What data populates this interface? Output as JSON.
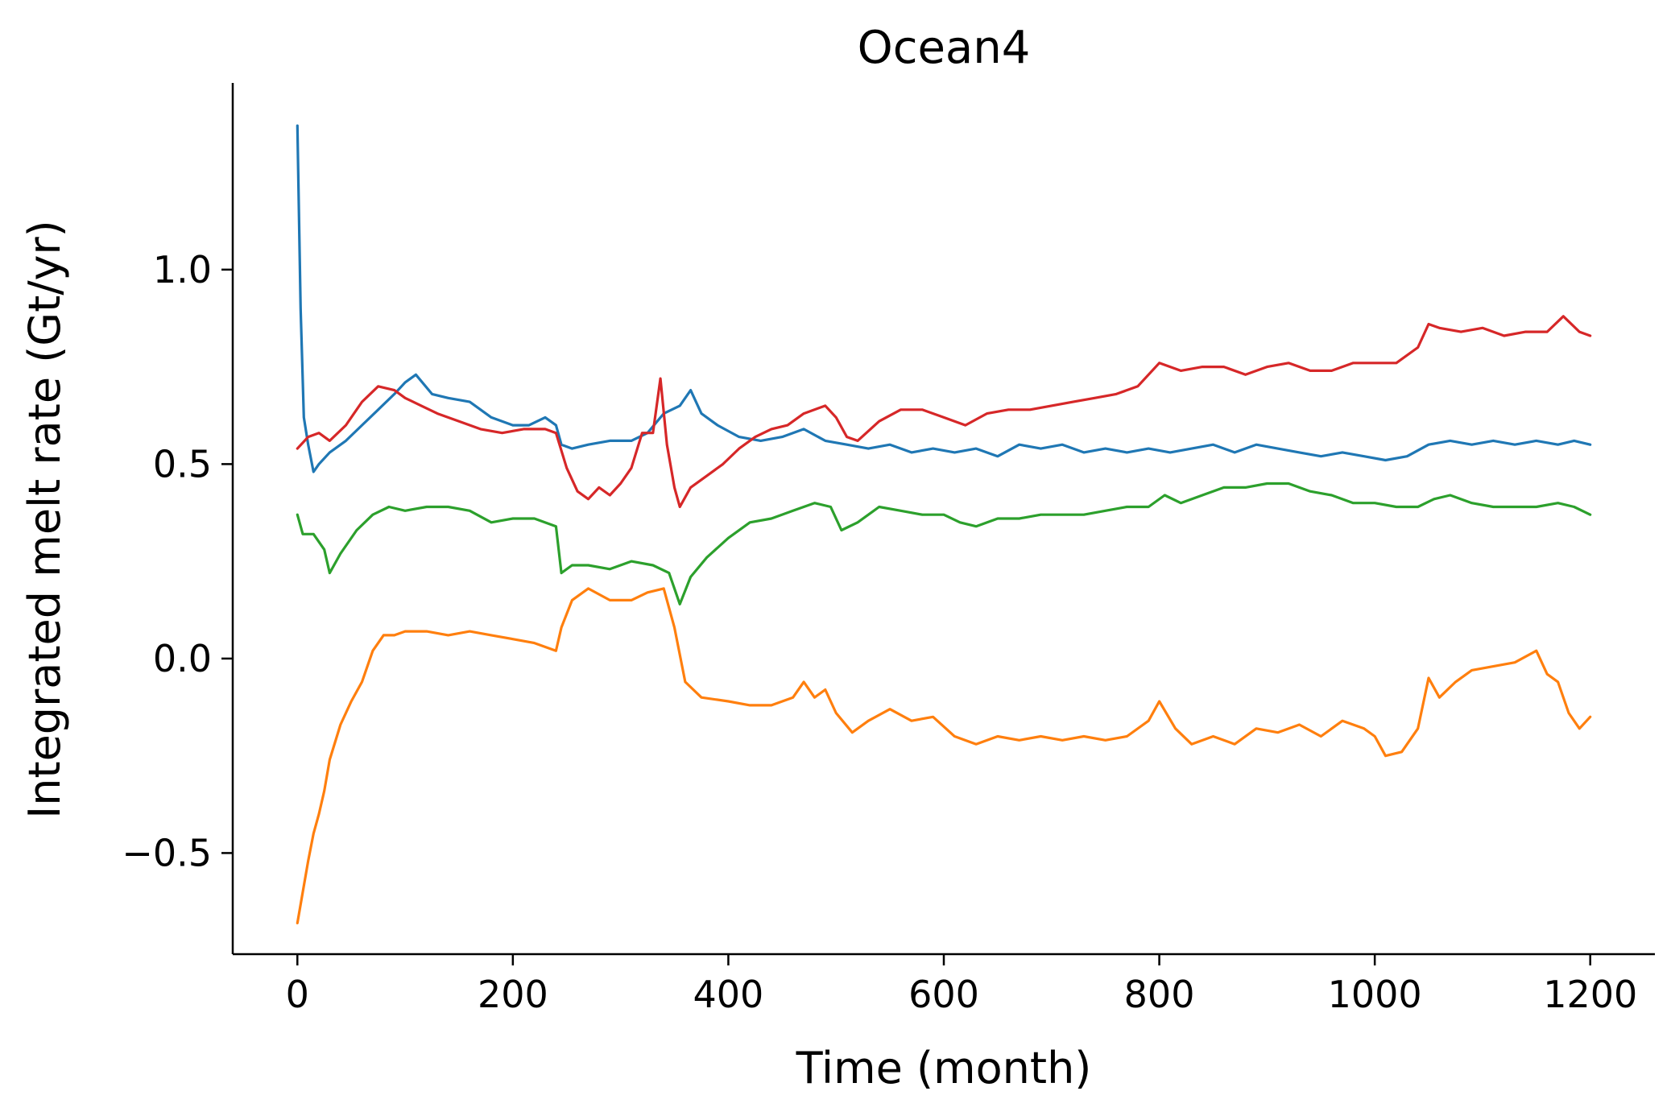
{
  "chart_data": {
    "type": "line",
    "title": "Ocean4",
    "xlabel": "Time (month)",
    "ylabel": "Integrated melt rate (Gt/yr)",
    "xlim": [
      -60,
      1260
    ],
    "ylim": [
      -0.76,
      1.48
    ],
    "xticks": [
      0,
      200,
      400,
      600,
      800,
      1000,
      1200
    ],
    "xtick_labels": [
      "0",
      "200",
      "400",
      "600",
      "800",
      "1000",
      "1200"
    ],
    "yticks": [
      -0.5,
      0.0,
      0.5,
      1.0
    ],
    "ytick_labels": [
      "−0.5",
      "0.0",
      "0.5",
      "1.0"
    ],
    "grid": false,
    "legend": "none",
    "series": [
      {
        "color": "#1f77b4",
        "points": [
          [
            0,
            1.37
          ],
          [
            3,
            0.9
          ],
          [
            6,
            0.62
          ],
          [
            10,
            0.55
          ],
          [
            15,
            0.48
          ],
          [
            20,
            0.5
          ],
          [
            30,
            0.53
          ],
          [
            45,
            0.56
          ],
          [
            60,
            0.6
          ],
          [
            75,
            0.64
          ],
          [
            90,
            0.68
          ],
          [
            100,
            0.71
          ],
          [
            110,
            0.73
          ],
          [
            125,
            0.68
          ],
          [
            140,
            0.67
          ],
          [
            160,
            0.66
          ],
          [
            180,
            0.62
          ],
          [
            200,
            0.6
          ],
          [
            215,
            0.6
          ],
          [
            230,
            0.62
          ],
          [
            240,
            0.6
          ],
          [
            245,
            0.55
          ],
          [
            255,
            0.54
          ],
          [
            270,
            0.55
          ],
          [
            290,
            0.56
          ],
          [
            310,
            0.56
          ],
          [
            325,
            0.58
          ],
          [
            340,
            0.63
          ],
          [
            355,
            0.65
          ],
          [
            365,
            0.69
          ],
          [
            375,
            0.63
          ],
          [
            390,
            0.6
          ],
          [
            410,
            0.57
          ],
          [
            430,
            0.56
          ],
          [
            450,
            0.57
          ],
          [
            470,
            0.59
          ],
          [
            490,
            0.56
          ],
          [
            510,
            0.55
          ],
          [
            530,
            0.54
          ],
          [
            550,
            0.55
          ],
          [
            570,
            0.53
          ],
          [
            590,
            0.54
          ],
          [
            610,
            0.53
          ],
          [
            630,
            0.54
          ],
          [
            650,
            0.52
          ],
          [
            670,
            0.55
          ],
          [
            690,
            0.54
          ],
          [
            710,
            0.55
          ],
          [
            730,
            0.53
          ],
          [
            750,
            0.54
          ],
          [
            770,
            0.53
          ],
          [
            790,
            0.54
          ],
          [
            810,
            0.53
          ],
          [
            830,
            0.54
          ],
          [
            850,
            0.55
          ],
          [
            870,
            0.53
          ],
          [
            890,
            0.55
          ],
          [
            910,
            0.54
          ],
          [
            930,
            0.53
          ],
          [
            950,
            0.52
          ],
          [
            970,
            0.53
          ],
          [
            990,
            0.52
          ],
          [
            1010,
            0.51
          ],
          [
            1030,
            0.52
          ],
          [
            1050,
            0.55
          ],
          [
            1070,
            0.56
          ],
          [
            1090,
            0.55
          ],
          [
            1110,
            0.56
          ],
          [
            1130,
            0.55
          ],
          [
            1150,
            0.56
          ],
          [
            1170,
            0.55
          ],
          [
            1185,
            0.56
          ],
          [
            1200,
            0.55
          ]
        ]
      },
      {
        "color": "#ff7f0e",
        "points": [
          [
            0,
            -0.68
          ],
          [
            5,
            -0.6
          ],
          [
            10,
            -0.52
          ],
          [
            15,
            -0.45
          ],
          [
            20,
            -0.4
          ],
          [
            25,
            -0.34
          ],
          [
            30,
            -0.26
          ],
          [
            40,
            -0.17
          ],
          [
            50,
            -0.11
          ],
          [
            60,
            -0.06
          ],
          [
            70,
            0.02
          ],
          [
            80,
            0.06
          ],
          [
            90,
            0.06
          ],
          [
            100,
            0.07
          ],
          [
            120,
            0.07
          ],
          [
            140,
            0.06
          ],
          [
            160,
            0.07
          ],
          [
            180,
            0.06
          ],
          [
            200,
            0.05
          ],
          [
            220,
            0.04
          ],
          [
            240,
            0.02
          ],
          [
            245,
            0.08
          ],
          [
            255,
            0.15
          ],
          [
            270,
            0.18
          ],
          [
            290,
            0.15
          ],
          [
            310,
            0.15
          ],
          [
            325,
            0.17
          ],
          [
            340,
            0.18
          ],
          [
            350,
            0.08
          ],
          [
            360,
            -0.06
          ],
          [
            375,
            -0.1
          ],
          [
            400,
            -0.11
          ],
          [
            420,
            -0.12
          ],
          [
            440,
            -0.12
          ],
          [
            460,
            -0.1
          ],
          [
            470,
            -0.06
          ],
          [
            480,
            -0.1
          ],
          [
            490,
            -0.08
          ],
          [
            500,
            -0.14
          ],
          [
            515,
            -0.19
          ],
          [
            530,
            -0.16
          ],
          [
            550,
            -0.13
          ],
          [
            570,
            -0.16
          ],
          [
            590,
            -0.15
          ],
          [
            610,
            -0.2
          ],
          [
            630,
            -0.22
          ],
          [
            650,
            -0.2
          ],
          [
            670,
            -0.21
          ],
          [
            690,
            -0.2
          ],
          [
            710,
            -0.21
          ],
          [
            730,
            -0.2
          ],
          [
            750,
            -0.21
          ],
          [
            770,
            -0.2
          ],
          [
            790,
            -0.16
          ],
          [
            800,
            -0.11
          ],
          [
            815,
            -0.18
          ],
          [
            830,
            -0.22
          ],
          [
            850,
            -0.2
          ],
          [
            870,
            -0.22
          ],
          [
            890,
            -0.18
          ],
          [
            910,
            -0.19
          ],
          [
            930,
            -0.17
          ],
          [
            950,
            -0.2
          ],
          [
            970,
            -0.16
          ],
          [
            990,
            -0.18
          ],
          [
            1000,
            -0.2
          ],
          [
            1010,
            -0.25
          ],
          [
            1025,
            -0.24
          ],
          [
            1040,
            -0.18
          ],
          [
            1050,
            -0.05
          ],
          [
            1060,
            -0.1
          ],
          [
            1075,
            -0.06
          ],
          [
            1090,
            -0.03
          ],
          [
            1110,
            -0.02
          ],
          [
            1130,
            -0.01
          ],
          [
            1150,
            0.02
          ],
          [
            1160,
            -0.04
          ],
          [
            1170,
            -0.06
          ],
          [
            1180,
            -0.14
          ],
          [
            1190,
            -0.18
          ],
          [
            1200,
            -0.15
          ]
        ]
      },
      {
        "color": "#2ca02c",
        "points": [
          [
            0,
            0.37
          ],
          [
            5,
            0.32
          ],
          [
            15,
            0.32
          ],
          [
            25,
            0.28
          ],
          [
            30,
            0.22
          ],
          [
            40,
            0.27
          ],
          [
            55,
            0.33
          ],
          [
            70,
            0.37
          ],
          [
            85,
            0.39
          ],
          [
            100,
            0.38
          ],
          [
            120,
            0.39
          ],
          [
            140,
            0.39
          ],
          [
            160,
            0.38
          ],
          [
            180,
            0.35
          ],
          [
            200,
            0.36
          ],
          [
            220,
            0.36
          ],
          [
            240,
            0.34
          ],
          [
            245,
            0.22
          ],
          [
            255,
            0.24
          ],
          [
            270,
            0.24
          ],
          [
            290,
            0.23
          ],
          [
            310,
            0.25
          ],
          [
            330,
            0.24
          ],
          [
            345,
            0.22
          ],
          [
            355,
            0.14
          ],
          [
            365,
            0.21
          ],
          [
            380,
            0.26
          ],
          [
            400,
            0.31
          ],
          [
            420,
            0.35
          ],
          [
            440,
            0.36
          ],
          [
            460,
            0.38
          ],
          [
            480,
            0.4
          ],
          [
            495,
            0.39
          ],
          [
            505,
            0.33
          ],
          [
            520,
            0.35
          ],
          [
            540,
            0.39
          ],
          [
            560,
            0.38
          ],
          [
            580,
            0.37
          ],
          [
            600,
            0.37
          ],
          [
            615,
            0.35
          ],
          [
            630,
            0.34
          ],
          [
            650,
            0.36
          ],
          [
            670,
            0.36
          ],
          [
            690,
            0.37
          ],
          [
            710,
            0.37
          ],
          [
            730,
            0.37
          ],
          [
            750,
            0.38
          ],
          [
            770,
            0.39
          ],
          [
            790,
            0.39
          ],
          [
            805,
            0.42
          ],
          [
            820,
            0.4
          ],
          [
            840,
            0.42
          ],
          [
            860,
            0.44
          ],
          [
            880,
            0.44
          ],
          [
            900,
            0.45
          ],
          [
            920,
            0.45
          ],
          [
            940,
            0.43
          ],
          [
            960,
            0.42
          ],
          [
            980,
            0.4
          ],
          [
            1000,
            0.4
          ],
          [
            1020,
            0.39
          ],
          [
            1040,
            0.39
          ],
          [
            1055,
            0.41
          ],
          [
            1070,
            0.42
          ],
          [
            1090,
            0.4
          ],
          [
            1110,
            0.39
          ],
          [
            1130,
            0.39
          ],
          [
            1150,
            0.39
          ],
          [
            1170,
            0.4
          ],
          [
            1185,
            0.39
          ],
          [
            1200,
            0.37
          ]
        ]
      },
      {
        "color": "#d62728",
        "points": [
          [
            0,
            0.54
          ],
          [
            10,
            0.57
          ],
          [
            20,
            0.58
          ],
          [
            30,
            0.56
          ],
          [
            45,
            0.6
          ],
          [
            60,
            0.66
          ],
          [
            75,
            0.7
          ],
          [
            90,
            0.69
          ],
          [
            100,
            0.67
          ],
          [
            115,
            0.65
          ],
          [
            130,
            0.63
          ],
          [
            150,
            0.61
          ],
          [
            170,
            0.59
          ],
          [
            190,
            0.58
          ],
          [
            210,
            0.59
          ],
          [
            230,
            0.59
          ],
          [
            240,
            0.58
          ],
          [
            250,
            0.49
          ],
          [
            260,
            0.43
          ],
          [
            270,
            0.41
          ],
          [
            280,
            0.44
          ],
          [
            290,
            0.42
          ],
          [
            300,
            0.45
          ],
          [
            310,
            0.49
          ],
          [
            320,
            0.58
          ],
          [
            330,
            0.58
          ],
          [
            337,
            0.72
          ],
          [
            343,
            0.55
          ],
          [
            350,
            0.44
          ],
          [
            355,
            0.39
          ],
          [
            365,
            0.44
          ],
          [
            380,
            0.47
          ],
          [
            395,
            0.5
          ],
          [
            410,
            0.54
          ],
          [
            425,
            0.57
          ],
          [
            440,
            0.59
          ],
          [
            455,
            0.6
          ],
          [
            470,
            0.63
          ],
          [
            490,
            0.65
          ],
          [
            500,
            0.62
          ],
          [
            510,
            0.57
          ],
          [
            520,
            0.56
          ],
          [
            540,
            0.61
          ],
          [
            560,
            0.64
          ],
          [
            580,
            0.64
          ],
          [
            600,
            0.62
          ],
          [
            620,
            0.6
          ],
          [
            640,
            0.63
          ],
          [
            660,
            0.64
          ],
          [
            680,
            0.64
          ],
          [
            700,
            0.65
          ],
          [
            720,
            0.66
          ],
          [
            740,
            0.67
          ],
          [
            760,
            0.68
          ],
          [
            780,
            0.7
          ],
          [
            800,
            0.76
          ],
          [
            820,
            0.74
          ],
          [
            840,
            0.75
          ],
          [
            860,
            0.75
          ],
          [
            880,
            0.73
          ],
          [
            900,
            0.75
          ],
          [
            920,
            0.76
          ],
          [
            940,
            0.74
          ],
          [
            960,
            0.74
          ],
          [
            980,
            0.76
          ],
          [
            1000,
            0.76
          ],
          [
            1020,
            0.76
          ],
          [
            1040,
            0.8
          ],
          [
            1050,
            0.86
          ],
          [
            1060,
            0.85
          ],
          [
            1080,
            0.84
          ],
          [
            1100,
            0.85
          ],
          [
            1120,
            0.83
          ],
          [
            1140,
            0.84
          ],
          [
            1160,
            0.84
          ],
          [
            1175,
            0.88
          ],
          [
            1190,
            0.84
          ],
          [
            1200,
            0.83
          ]
        ]
      }
    ]
  }
}
